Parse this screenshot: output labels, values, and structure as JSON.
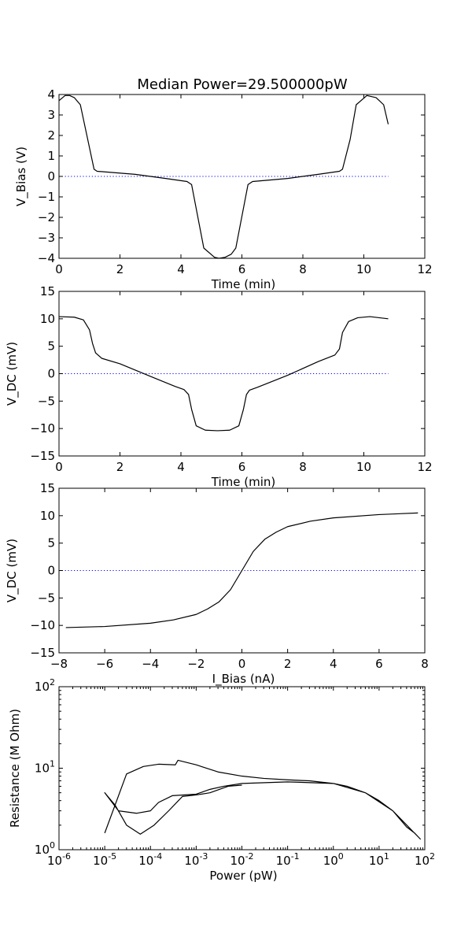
{
  "title": "Median Power=29.500000pW",
  "chart_data": [
    {
      "type": "line",
      "xlabel": "Time (min)",
      "ylabel": "V_Bias (V)",
      "xlim": [
        0,
        12
      ],
      "ylim": [
        -4,
        4
      ],
      "xticks": [
        "0",
        "2",
        "4",
        "6",
        "8",
        "10",
        "12"
      ],
      "yticks": [
        "4",
        "3",
        "2",
        "1",
        "0",
        "−1",
        "−2",
        "−3",
        "−4"
      ],
      "reference_line": {
        "y": 0,
        "style": "dotted",
        "color": "#0000ff"
      },
      "series": [
        {
          "x": [
            0,
            0.2,
            0.35,
            0.5,
            0.7,
            1.15,
            1.25,
            2.5,
            3.5,
            4.2,
            4.35,
            4.75,
            5.1,
            5.25,
            5.45,
            5.65,
            5.8,
            6.2,
            6.35,
            7.5,
            8.5,
            9.2,
            9.3,
            9.55,
            9.75,
            10.1,
            10.4,
            10.65,
            10.8
          ],
          "y": [
            3.7,
            3.95,
            3.95,
            3.85,
            3.5,
            0.35,
            0.25,
            0.1,
            -0.1,
            -0.25,
            -0.4,
            -3.5,
            -3.95,
            -4.0,
            -3.95,
            -3.8,
            -3.5,
            -0.4,
            -0.25,
            -0.1,
            0.1,
            0.25,
            0.35,
            1.8,
            3.5,
            3.95,
            3.85,
            3.5,
            2.55
          ]
        }
      ]
    },
    {
      "type": "line",
      "xlabel": "Time (min)",
      "ylabel": "V_DC (mV)",
      "xlim": [
        0,
        12
      ],
      "ylim": [
        -15,
        15
      ],
      "xticks": [
        "0",
        "2",
        "4",
        "6",
        "8",
        "10",
        "12"
      ],
      "yticks": [
        "15",
        "10",
        "5",
        "0",
        "−5",
        "−10",
        "−15"
      ],
      "reference_line": {
        "y": 0,
        "style": "dotted",
        "color": "#0000ff"
      },
      "series": [
        {
          "x": [
            0,
            0.5,
            0.8,
            1.0,
            1.1,
            1.2,
            1.4,
            2.0,
            3.0,
            3.8,
            4.1,
            4.25,
            4.35,
            4.5,
            4.8,
            5.2,
            5.6,
            5.9,
            6.05,
            6.15,
            6.25,
            6.5,
            7.5,
            8.5,
            9.05,
            9.2,
            9.3,
            9.5,
            9.8,
            10.2,
            10.8
          ],
          "y": [
            10.4,
            10.3,
            9.8,
            8.0,
            5.5,
            3.8,
            2.8,
            1.8,
            -0.5,
            -2.3,
            -2.9,
            -3.8,
            -6.5,
            -9.5,
            -10.3,
            -10.4,
            -10.3,
            -9.5,
            -6.5,
            -3.8,
            -3.0,
            -2.5,
            -0.3,
            2.2,
            3.4,
            4.5,
            7.5,
            9.5,
            10.2,
            10.4,
            10.0
          ]
        }
      ]
    },
    {
      "type": "line",
      "xlabel": "I_Bias (nA)",
      "ylabel": "V_DC (mV)",
      "xlim": [
        -8,
        8
      ],
      "ylim": [
        -15,
        15
      ],
      "xticks": [
        "−8",
        "−6",
        "−4",
        "−2",
        "0",
        "2",
        "4",
        "6",
        "8"
      ],
      "yticks": [
        "15",
        "10",
        "5",
        "0",
        "−5",
        "−10",
        "−15"
      ],
      "reference_line": {
        "y": 0,
        "style": "dotted",
        "color": "#0000ff"
      },
      "series": [
        {
          "x": [
            -7.7,
            -6,
            -4,
            -3,
            -2,
            -1.5,
            -1,
            -0.5,
            0,
            0.5,
            1,
            1.5,
            2,
            3,
            4,
            6,
            7.7
          ],
          "y": [
            -10.4,
            -10.2,
            -9.6,
            -9.0,
            -8.0,
            -7.0,
            -5.7,
            -3.5,
            0,
            3.5,
            5.7,
            7.0,
            8.0,
            9.0,
            9.6,
            10.2,
            10.5
          ]
        }
      ]
    },
    {
      "type": "line",
      "xlabel": "Power (pW)",
      "ylabel": "Resistance (M Ohm)",
      "xscale": "log",
      "yscale": "log",
      "xlim": [
        1e-06,
        100
      ],
      "ylim": [
        1,
        100
      ],
      "xticks": [
        {
          "base": "10",
          "exp": "-6"
        },
        {
          "base": "10",
          "exp": "-5"
        },
        {
          "base": "10",
          "exp": "-4"
        },
        {
          "base": "10",
          "exp": "-3"
        },
        {
          "base": "10",
          "exp": "-2"
        },
        {
          "base": "10",
          "exp": "-1"
        },
        {
          "base": "10",
          "exp": "0"
        },
        {
          "base": "10",
          "exp": "1"
        },
        {
          "base": "10",
          "exp": "2"
        }
      ],
      "yticks": [
        {
          "base": "10",
          "exp": "2"
        },
        {
          "base": "10",
          "exp": "1"
        },
        {
          "base": "10",
          "exp": "0"
        }
      ],
      "series": [
        {
          "x": [
            1e-05,
            3e-05,
            7e-05,
            0.00015,
            0.00035,
            0.0004,
            0.001,
            0.003,
            0.01,
            0.03,
            0.1,
            0.3,
            1,
            2,
            5,
            10,
            20,
            40,
            60,
            80,
            20,
            5,
            1,
            0.1,
            0.01,
            0.004,
            0.002,
            0.001,
            0.0003,
            0.00015,
            0.0001,
            5e-05,
            2e-05,
            1e-05,
            1.7e-05,
            3e-05,
            6e-05,
            0.00012,
            0.00025,
            0.0005,
            0.001,
            0.002,
            0.005,
            0.01
          ],
          "y": [
            1.6,
            8.5,
            10.5,
            11.2,
            11.0,
            12.5,
            11.0,
            9.0,
            8.0,
            7.5,
            7.2,
            7.0,
            6.5,
            6.0,
            5.0,
            4.0,
            3.0,
            1.9,
            1.6,
            1.35,
            3.0,
            5.0,
            6.5,
            6.8,
            6.5,
            6.0,
            5.5,
            4.8,
            4.6,
            3.8,
            3.0,
            2.8,
            3.0,
            5.0,
            3.5,
            2.0,
            1.55,
            2.0,
            3.0,
            4.5,
            4.7,
            5.0,
            6.0,
            6.2
          ]
        }
      ]
    }
  ]
}
